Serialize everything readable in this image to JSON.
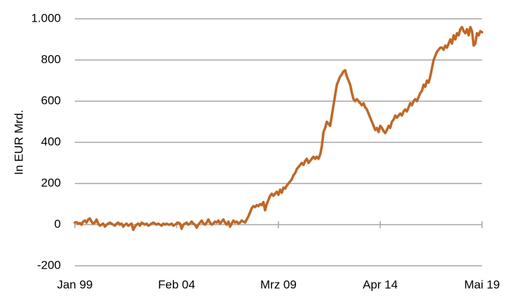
{
  "chart_data": {
    "type": "line",
    "y_label": "In EUR Mrd.",
    "ylim": [
      -200,
      1000
    ],
    "yticks": [
      -200,
      0,
      200,
      400,
      600,
      800,
      {
        "value": 1000,
        "label": "1.000"
      }
    ],
    "grid": true,
    "categories": [
      "Jan 99",
      null,
      null,
      null,
      null,
      null,
      null,
      null,
      null,
      null,
      null,
      null,
      null,
      null,
      null,
      null,
      null,
      null,
      null,
      null,
      null,
      null,
      null,
      null,
      null,
      null,
      null,
      null,
      null,
      null,
      null,
      null,
      null,
      null,
      null,
      null,
      null,
      null,
      null,
      null,
      null,
      null,
      null,
      null,
      null,
      null,
      null,
      null,
      null,
      null,
      null,
      null,
      null,
      null,
      null,
      null,
      null,
      null,
      null,
      null,
      null,
      "Feb 04",
      null,
      null,
      null,
      null,
      null,
      null,
      null,
      null,
      null,
      null,
      null,
      null,
      null,
      null,
      null,
      null,
      null,
      null,
      null,
      null,
      null,
      null,
      null,
      null,
      null,
      null,
      null,
      null,
      null,
      null,
      null,
      null,
      null,
      null,
      null,
      null,
      null,
      null,
      null,
      null,
      null,
      null,
      null,
      null,
      null,
      null,
      null,
      null,
      null,
      null,
      null,
      null,
      null,
      null,
      null,
      null,
      null,
      null,
      null,
      null,
      "Mrz 09",
      null,
      null,
      null,
      null,
      null,
      null,
      null,
      null,
      null,
      null,
      null,
      null,
      null,
      null,
      null,
      null,
      null,
      null,
      null,
      null,
      null,
      null,
      null,
      null,
      null,
      null,
      null,
      null,
      null,
      null,
      null,
      null,
      null,
      null,
      null,
      null,
      null,
      null,
      null,
      null,
      null,
      null,
      null,
      null,
      null,
      null,
      null,
      null,
      null,
      null,
      null,
      null,
      null,
      null,
      null,
      null,
      null,
      null,
      null,
      null,
      "Apr 14",
      null,
      null,
      null,
      null,
      null,
      null,
      null,
      null,
      null,
      null,
      null,
      null,
      null,
      null,
      null,
      null,
      null,
      null,
      null,
      null,
      null,
      null,
      null,
      null,
      null,
      null,
      null,
      null,
      null,
      null,
      null,
      null,
      null,
      null,
      null,
      null,
      null,
      null,
      null,
      null,
      null,
      null,
      null,
      null,
      null,
      null,
      null,
      null,
      null,
      null,
      null,
      null,
      null,
      null,
      null,
      null,
      null,
      null,
      null,
      null,
      "Mai 19"
    ],
    "series": [
      {
        "color": "#c5651f",
        "values": [
          10,
          12,
          5,
          8,
          0,
          15,
          20,
          10,
          25,
          30,
          15,
          5,
          10,
          25,
          5,
          -5,
          0,
          5,
          -10,
          0,
          5,
          10,
          5,
          0,
          -5,
          5,
          10,
          0,
          5,
          -10,
          0,
          5,
          -5,
          0,
          5,
          -25,
          -10,
          0,
          5,
          -5,
          10,
          5,
          0,
          5,
          -5,
          0,
          5,
          10,
          5,
          0,
          5,
          0,
          -5,
          5,
          0,
          5,
          0,
          0,
          5,
          -5,
          0,
          5,
          10,
          5,
          -20,
          0,
          5,
          10,
          0,
          5,
          15,
          5,
          0,
          -15,
          0,
          10,
          20,
          5,
          0,
          10,
          25,
          10,
          0,
          5,
          15,
          10,
          20,
          5,
          15,
          25,
          10,
          0,
          15,
          -10,
          5,
          20,
          10,
          15,
          5,
          10,
          20,
          15,
          10,
          25,
          40,
          60,
          80,
          90,
          85,
          95,
          90,
          100,
          95,
          110,
          70,
          100,
          120,
          140,
          150,
          140,
          150,
          160,
          145,
          170,
          155,
          180,
          175,
          190,
          200,
          210,
          220,
          240,
          250,
          270,
          280,
          290,
          300,
          290,
          310,
          320,
          300,
          310,
          320,
          330,
          320,
          330,
          320,
          340,
          380,
          450,
          470,
          500,
          490,
          480,
          530,
          580,
          630,
          680,
          700,
          720,
          730,
          745,
          750,
          720,
          700,
          680,
          640,
          610,
          600,
          610,
          600,
          590,
          580,
          590,
          570,
          560,
          540,
          520,
          500,
          480,
          460,
          470,
          450,
          480,
          470,
          455,
          445,
          460,
          480,
          470,
          500,
          510,
          530,
          520,
          530,
          540,
          530,
          550,
          560,
          550,
          570,
          590,
          580,
          600,
          610,
          600,
          620,
          640,
          650,
          680,
          670,
          700,
          690,
          720,
          760,
          800,
          820,
          840,
          850,
          860,
          860,
          850,
          870,
          860,
          880,
          900,
          880,
          920,
          900,
          930,
          920,
          950,
          960,
          940,
          930,
          950,
          920,
          960,
          940,
          870,
          880,
          930,
          920,
          940,
          935
        ]
      }
    ]
  }
}
